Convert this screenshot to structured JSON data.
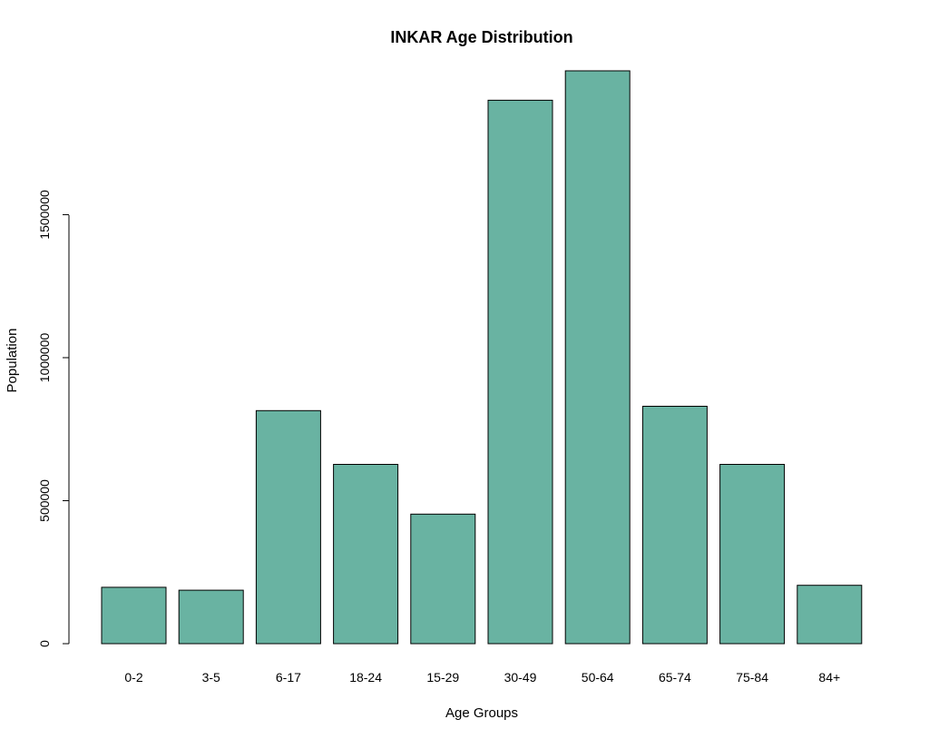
{
  "chart_data": {
    "type": "bar",
    "title": "INKAR Age Distribution",
    "xlabel": "Age Groups",
    "ylabel": "Population",
    "categories": [
      "0-2",
      "3-5",
      "6-17",
      "18-24",
      "15-29",
      "30-49",
      "50-64",
      "65-74",
      "75-84",
      "84+"
    ],
    "values": [
      197000,
      187000,
      815000,
      627000,
      453000,
      1900000,
      2003000,
      830000,
      627000,
      204000
    ],
    "ylim": [
      0,
      2003000
    ],
    "yticks": [
      0,
      500000,
      1000000,
      1500000
    ],
    "ytick_labels": [
      "0",
      "500000",
      "1000000",
      "1500000"
    ],
    "grid": false,
    "legend": "none",
    "bar_color": "#69b3a2",
    "edge_color": "#000000"
  }
}
